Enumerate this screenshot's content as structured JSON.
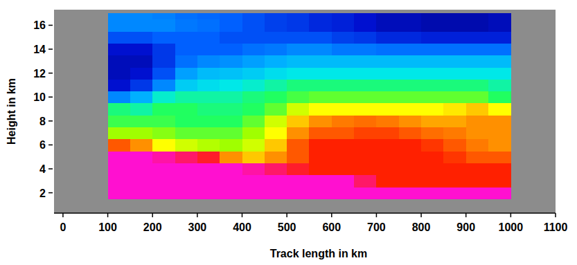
{
  "chart_data": {
    "type": "heatmap",
    "x_label": "Track length in km",
    "y_label": "Height in km",
    "xlim": [
      -20,
      1100
    ],
    "ylim": [
      0.3,
      17.3
    ],
    "xticks": [
      0,
      100,
      200,
      300,
      400,
      500,
      600,
      700,
      800,
      900,
      1000,
      1100
    ],
    "yticks": [
      2,
      4,
      6,
      8,
      10,
      12,
      14,
      16
    ],
    "zlim": [
      0,
      10
    ],
    "cell_x": [
      100,
      150,
      200,
      250,
      300,
      350,
      400,
      450,
      500,
      550,
      600,
      650,
      700,
      750,
      800,
      850,
      900,
      950,
      1000
    ],
    "cell_y": [
      1.5,
      2.5,
      3.5,
      4.5,
      5.5,
      6.5,
      7.5,
      8.5,
      9.5,
      10.5,
      11.5,
      12.5,
      13.5,
      14.5,
      15.5,
      16.5,
      17
    ],
    "cells": [
      [
        10,
        10,
        10,
        10,
        10,
        10,
        10,
        10,
        10,
        10,
        10,
        10,
        10,
        10,
        10,
        10,
        10,
        10
      ],
      [
        10,
        10,
        10,
        10,
        10,
        10,
        10,
        10,
        10,
        10,
        10,
        9.5,
        9,
        9,
        9,
        9,
        9,
        9
      ],
      [
        10,
        10,
        10,
        10,
        10,
        10,
        9.8,
        9.5,
        9.2,
        9,
        9,
        9,
        9,
        9,
        9,
        9,
        9,
        9
      ],
      [
        10,
        10,
        9.8,
        9.5,
        9.2,
        8,
        7.5,
        8,
        8.5,
        9,
        9,
        9,
        9,
        9,
        9,
        8.8,
        8.5,
        8.5
      ],
      [
        8.5,
        8,
        7,
        6.5,
        6.2,
        6,
        6.5,
        7.5,
        8.5,
        9,
        9,
        9,
        9,
        9,
        8.8,
        8.5,
        8.2,
        8
      ],
      [
        6,
        6,
        5.8,
        5.5,
        5.5,
        5.5,
        6,
        7,
        8,
        8.5,
        8.5,
        8.7,
        8.7,
        8.5,
        8.3,
        8.2,
        8,
        8
      ],
      [
        5.2,
        5.2,
        5.2,
        5,
        5,
        5,
        5.5,
        6.5,
        7.5,
        8,
        8.2,
        8.3,
        8.2,
        8,
        7.8,
        7.8,
        8,
        8
      ],
      [
        4.8,
        4.5,
        5,
        5,
        4.8,
        4.8,
        5,
        5.5,
        6.5,
        7,
        7,
        7,
        7,
        7,
        7,
        7.2,
        7.5,
        7
      ],
      [
        2.5,
        3,
        4.2,
        4.5,
        4.5,
        4.5,
        4.8,
        5,
        5.3,
        5.5,
        5.5,
        5.5,
        5.5,
        5.5,
        5.5,
        5.5,
        5.5,
        5
      ],
      [
        1,
        1.5,
        2.5,
        3.5,
        3.8,
        4,
        4.2,
        4.5,
        4.8,
        4.8,
        4.8,
        4.8,
        4.8,
        4.8,
        4.8,
        4.8,
        4.8,
        4.5
      ],
      [
        0.8,
        1,
        1.8,
        2.8,
        3.2,
        3.3,
        3.5,
        3.8,
        4,
        4,
        4,
        4,
        4,
        4,
        4,
        4,
        4,
        4
      ],
      [
        0.8,
        0.8,
        1.5,
        2.2,
        2.5,
        2.6,
        2.8,
        3,
        3.2,
        3.2,
        3.2,
        3.2,
        3.2,
        3.2,
        3.2,
        3.2,
        3.2,
        3.2
      ],
      [
        1,
        1,
        1.5,
        2,
        2,
        2,
        2.2,
        2.3,
        2.5,
        2.5,
        2.3,
        2.3,
        2.2,
        2.2,
        2.2,
        2.2,
        2.2,
        2.2
      ],
      [
        1.8,
        1.8,
        2,
        2,
        2,
        1.8,
        1.8,
        1.8,
        1.8,
        1.8,
        1.6,
        1.5,
        1.3,
        1.3,
        1.2,
        1.2,
        1.2,
        1.2
      ],
      [
        2.5,
        2.5,
        2.5,
        2.3,
        2.2,
        2,
        1.8,
        1.6,
        1.5,
        1.3,
        1.2,
        1,
        0.8,
        0.8,
        0.7,
        0.7,
        0.7,
        0.8
      ],
      [
        2.5,
        2.5,
        2.4,
        2.2,
        2.1,
        2,
        1.8,
        1.6,
        1.5,
        1.3,
        1.2,
        1,
        0.8,
        0.8,
        0.7,
        0.7,
        0.7,
        0.8
      ]
    ]
  }
}
